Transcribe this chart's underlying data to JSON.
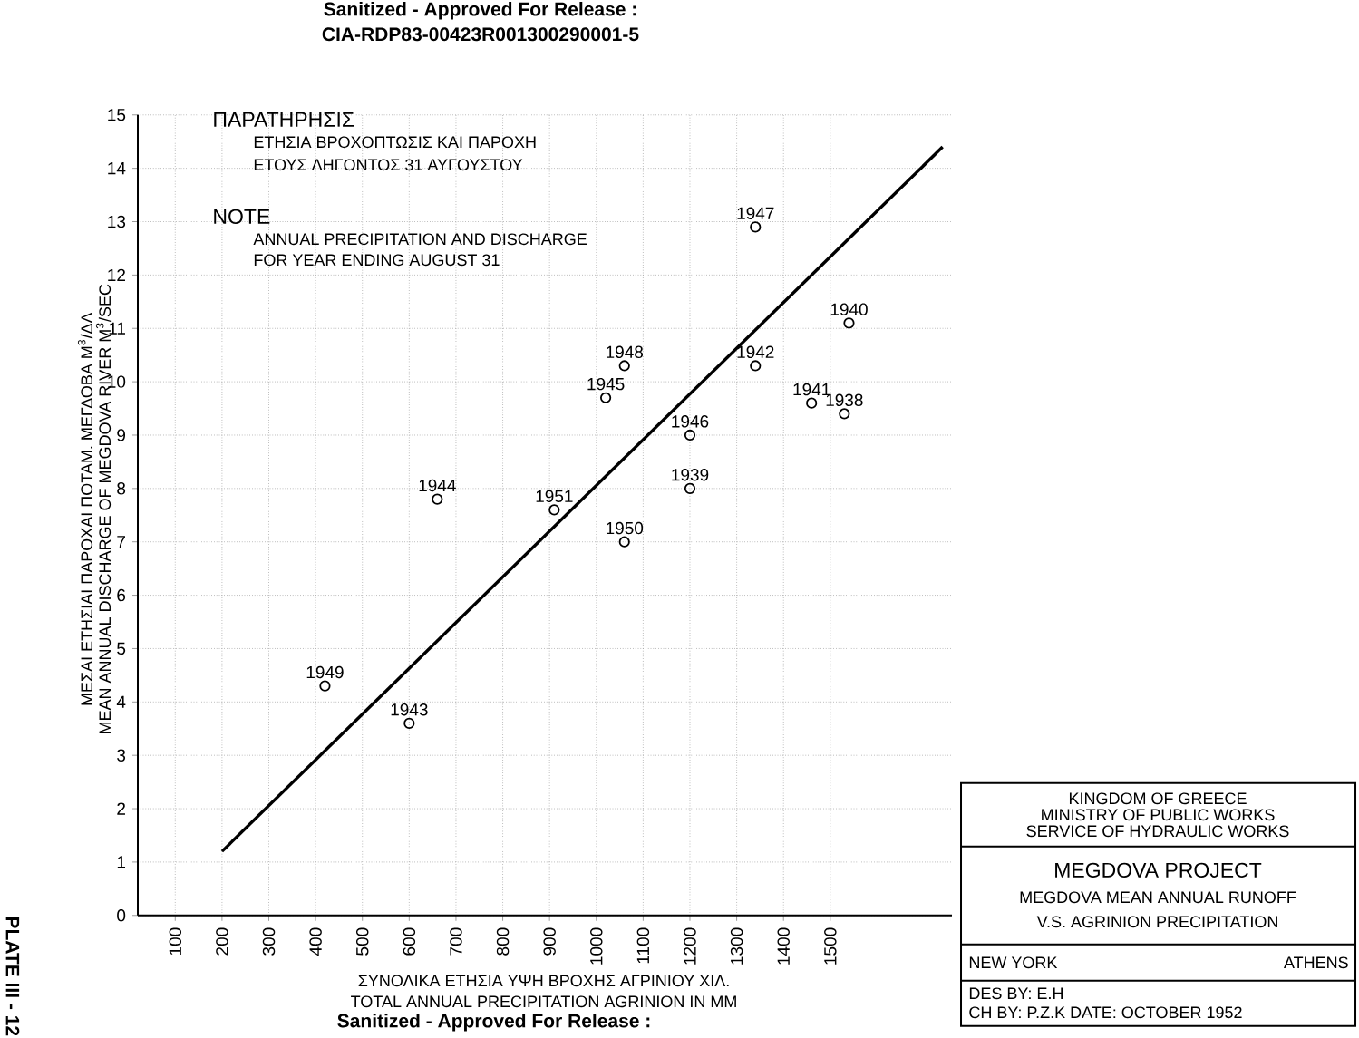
{
  "chart_data": {
    "type": "scatter",
    "title": "MEGDOVA PROJECT",
    "xlabel": "TOTAL ANNUAL PRECIPITATION AGRINION IN MM",
    "ylabel": "MEAN ANNUAL DISCHARGE OF MEGDOVA RIVER M$^{3}$/SEC",
    "xlim": [
      20,
      1760
    ],
    "ylim": [
      0,
      15
    ],
    "xticks": [
      100,
      200,
      300,
      400,
      500,
      600,
      700,
      800,
      900,
      1000,
      1100,
      1200,
      1300,
      1400,
      1500
    ],
    "yticks": [
      0,
      1,
      2,
      3,
      4,
      5,
      6,
      7,
      8,
      9,
      10,
      11,
      12,
      13,
      14,
      15
    ],
    "grid": true,
    "series": [
      {
        "color": "#000000",
        "marker": "circle",
        "x": [
          420,
          600,
          660,
          910,
          1020,
          1060,
          1060,
          1200,
          1200,
          1340,
          1340,
          1460,
          1530,
          1540
        ],
        "values": [
          4.3,
          3.6,
          7.8,
          7.6,
          9.7,
          10.3,
          7.0,
          8.0,
          9.0,
          12.9,
          10.3,
          9.6,
          9.4,
          11.1
        ]
      },
      {
        "type": "line",
        "color": "#000000",
        "x": [
          200,
          1740
        ],
        "values": [
          1.2,
          14.4
        ]
      }
    ],
    "annotations": [
      "Sanitized - Approved For Release :",
      "CIA-RDP83-00423R001300290001-5",
      "Sanitized - Approved For Release :",
      "PLATE III - 12",
      "ΣΥΝΟΛΙΚΑ ΕΤΗΣΙΑ ΥΨΗ ΒΡΟΧΗΣ ΑΓΡΙΝΙΟΥ ΧΙΛ.",
      "ΜΕΣΑΙ ΕΤΗΣΙΑΙ ΠΑΡΟΧΑΙ ΠΟΤΑΜ. ΜΕΓΔΟΒΑ Μ$^{3}$/ΔΛ",
      "ΠΑΡΑΤΗΡΗΣΙΣ",
      "ΕΤΗΣΙΑ ΒΡΟΧΟΠΤΩΣΙΣ ΚΑΙ ΠΑΡΟΧΗ",
      "ΕΤΟΥΣ ΛΗΓΟΝΤΟΣ 31 ΑΥΓΟΥΣΤΟΥ",
      "NOTE",
      "ANNUAL PRECIPITATION AND DISCHARGE",
      "FOR YEAR ENDING AUGUST 31",
      "KINGDOM OF GREECE",
      "MINISTRY OF PUBLIC WORKS",
      "SERVICE OF HYDRAULIC WORKS",
      "MEGDOVA MEAN ANNUAL RUNOFF",
      "V.S. AGRINION PRECIPITATION",
      "NEW YORK",
      "ATHENS",
      "DES BY: E.H",
      "CH BY: P.Z.K DATE: OCTOBER 1952",
      {
        "text": "1949",
        "x": 420,
        "y": 4.3
      },
      {
        "text": "1943",
        "x": 600,
        "y": 3.6
      },
      {
        "text": "1944",
        "x": 660,
        "y": 7.8
      },
      {
        "text": "1951",
        "x": 910,
        "y": 7.6
      },
      {
        "text": "1945",
        "x": 1020,
        "y": 9.7
      },
      {
        "text": "1948",
        "x": 1060,
        "y": 10.3
      },
      {
        "text": "1950",
        "x": 1060,
        "y": 7.0
      },
      {
        "text": "1939",
        "x": 1200,
        "y": 8.0
      },
      {
        "text": "1946",
        "x": 1200,
        "y": 9.0
      },
      {
        "text": "1947",
        "x": 1340,
        "y": 12.9
      },
      {
        "text": "1942",
        "x": 1340,
        "y": 10.3
      },
      {
        "text": "1941",
        "x": 1460,
        "y": 9.6
      },
      {
        "text": "1938",
        "x": 1530,
        "y": 9.4
      },
      {
        "text": "1940",
        "x": 1540,
        "y": 11.1
      }
    ]
  }
}
